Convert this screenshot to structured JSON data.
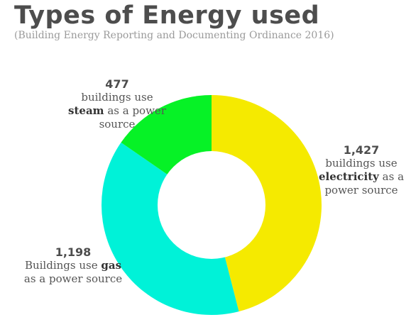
{
  "title": "Types of Energy used",
  "subtitle": "(Building Energy Reporting and Documenting Ordinance 2016)",
  "chart_data": {
    "type": "pie",
    "donut": true,
    "categories": [
      "electricity",
      "gas",
      "steam"
    ],
    "values": [
      1427,
      1198,
      477
    ],
    "colors": [
      "#f5ea00",
      "#00f2d8",
      "#06f226"
    ],
    "annotations": [
      {
        "key": "steam",
        "number": "477",
        "pre": "buildings use",
        "bold": "steam",
        "post": "as a power",
        "line3": "source"
      },
      {
        "key": "electricity",
        "number": "1,427",
        "pre": "buildings use",
        "bold": "electricity",
        "post": "as a",
        "line3": "power source"
      },
      {
        "key": "gas",
        "number": "1,198",
        "pre": "Buildings use",
        "bold": "gas",
        "post": "",
        "line3": "as a power source"
      }
    ]
  }
}
